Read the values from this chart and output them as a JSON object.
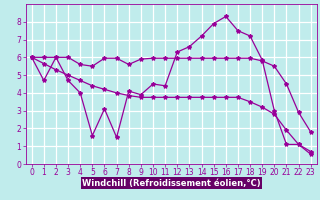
{
  "xlabel": "Windchill (Refroidissement éolien,°C)",
  "ylabel": "",
  "bg_color": "#c0ecec",
  "plot_bg_color": "#c0ecec",
  "grid_color": "#ffffff",
  "line_color": "#990099",
  "axis_label_bg": "#660066",
  "xlim": [
    -0.5,
    23.5
  ],
  "ylim": [
    0,
    9
  ],
  "xticks": [
    0,
    1,
    2,
    3,
    4,
    5,
    6,
    7,
    8,
    9,
    10,
    11,
    12,
    13,
    14,
    15,
    16,
    17,
    18,
    19,
    20,
    21,
    22,
    23
  ],
  "yticks": [
    0,
    1,
    2,
    3,
    4,
    5,
    6,
    7,
    8
  ],
  "line1_x": [
    0,
    1,
    2,
    3,
    4,
    5,
    6,
    7,
    8,
    9,
    10,
    11,
    12,
    13,
    14,
    15,
    16,
    17,
    18,
    19,
    20,
    21,
    22,
    23
  ],
  "line1_y": [
    6.0,
    4.7,
    6.0,
    4.7,
    4.0,
    1.6,
    3.1,
    1.5,
    4.1,
    3.9,
    4.5,
    4.4,
    6.3,
    6.6,
    7.2,
    7.9,
    8.3,
    7.5,
    7.2,
    5.85,
    3.0,
    1.1,
    1.1,
    0.55
  ],
  "line2_x": [
    0,
    1,
    2,
    3,
    4,
    5,
    6,
    7,
    8,
    9,
    10,
    11,
    12,
    13,
    14,
    15,
    16,
    17,
    18,
    19,
    20,
    21,
    22,
    23
  ],
  "line2_y": [
    6.0,
    6.0,
    6.0,
    6.0,
    5.6,
    5.5,
    5.95,
    5.95,
    5.6,
    5.9,
    5.95,
    5.95,
    5.95,
    5.95,
    5.95,
    5.95,
    5.95,
    5.95,
    5.95,
    5.8,
    5.5,
    4.5,
    2.9,
    1.8
  ],
  "line3_x": [
    0,
    1,
    2,
    3,
    4,
    5,
    6,
    7,
    8,
    9,
    10,
    11,
    12,
    13,
    14,
    15,
    16,
    17,
    18,
    19,
    20,
    21,
    22,
    23
  ],
  "line3_y": [
    6.0,
    5.65,
    5.3,
    5.0,
    4.7,
    4.4,
    4.2,
    4.0,
    3.85,
    3.75,
    3.75,
    3.75,
    3.75,
    3.75,
    3.75,
    3.75,
    3.75,
    3.75,
    3.5,
    3.2,
    2.8,
    1.9,
    1.1,
    0.7
  ],
  "marker": "*",
  "markersize": 3,
  "linewidth": 0.9,
  "tick_fontsize": 5.5,
  "label_fontsize": 6.0
}
